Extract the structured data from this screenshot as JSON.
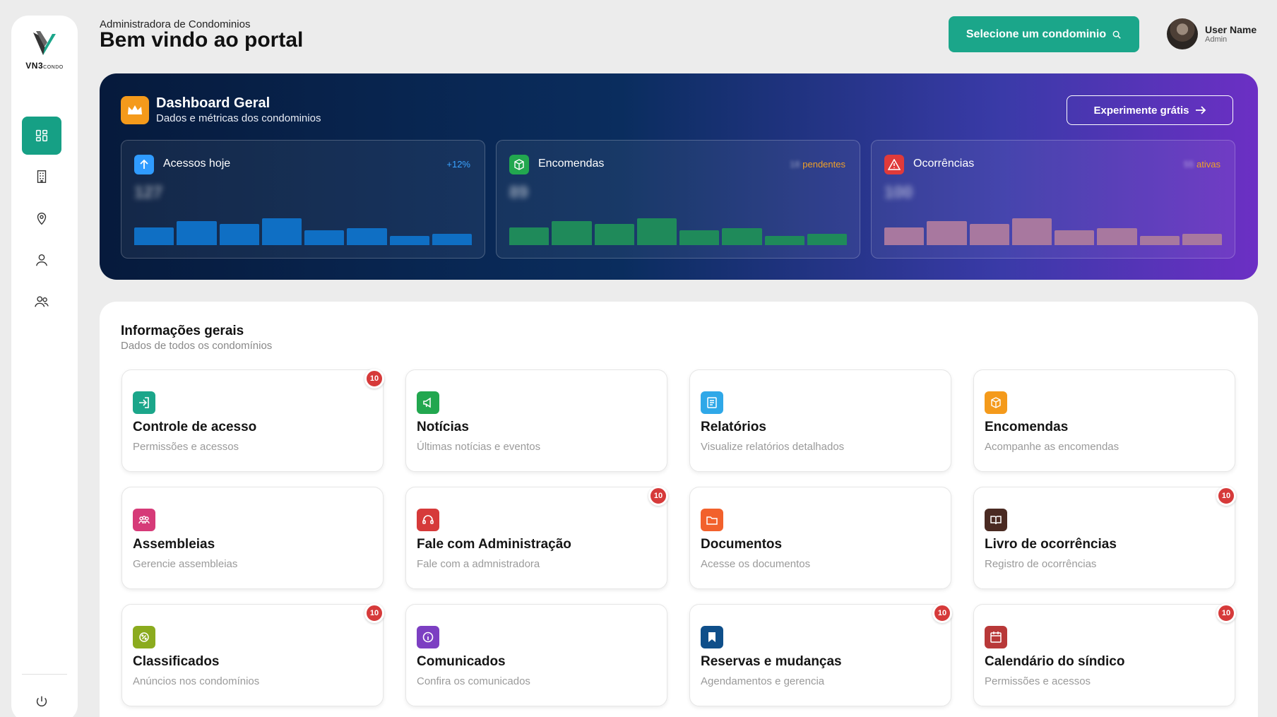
{
  "sidebar": {
    "logo_text": "VN3",
    "logo_small": "CONDO",
    "items": [
      {
        "name": "dashboard",
        "icon": "dashboard-icon",
        "active": true
      },
      {
        "name": "building",
        "icon": "building-icon",
        "active": false
      },
      {
        "name": "location",
        "icon": "location-pin-icon",
        "active": false
      },
      {
        "name": "user",
        "icon": "user-icon",
        "active": false
      },
      {
        "name": "users",
        "icon": "users-icon",
        "active": false
      }
    ],
    "logout_icon": "power-icon"
  },
  "header": {
    "subtitle": "Administradora de Condominios",
    "title": "Bem vindo ao portal",
    "select_button": "Selecione um condominio",
    "user_name": "User Name",
    "user_role": "Admin"
  },
  "dashboard": {
    "title": "Dashboard Geral",
    "subtitle": "Dados e métricas dos condominios",
    "trial_button": "Experimente grátis",
    "metrics": [
      {
        "title": "Acessos hoje",
        "badge_value": "",
        "badge_text": "+12%",
        "value": "127",
        "color": "#1589e0",
        "bar_color": "#0f6fc4",
        "bars": [
          0.55,
          0.75,
          0.65,
          0.82,
          0.45,
          0.52,
          0.28,
          0.35
        ]
      },
      {
        "title": "Encomendas",
        "badge_value": "18",
        "badge_text": "pendentes",
        "value": "89",
        "color": "#22a74f",
        "bar_color": "#1f8a5a",
        "bars": [
          0.55,
          0.75,
          0.65,
          0.82,
          0.45,
          0.52,
          0.28,
          0.35
        ]
      },
      {
        "title": "Ocorrências",
        "badge_value": "55",
        "badge_text": "ativas",
        "value": "100",
        "color": "#e03a3a",
        "bar_color": "#a8789f",
        "bars": [
          0.55,
          0.75,
          0.65,
          0.82,
          0.45,
          0.52,
          0.28,
          0.35
        ]
      }
    ],
    "badge_colors": [
      "#3aa3ff",
      "#f0a028",
      "#f0a028"
    ]
  },
  "info": {
    "title": "Informações gerais",
    "subtitle": "Dados de todos os condomínios",
    "cards": [
      {
        "title": "Controle de acesso",
        "subtitle": "Permissões e acessos",
        "badge": "10",
        "icon": "door-enter-icon",
        "color": "#1ba68a"
      },
      {
        "title": "Notícias",
        "subtitle": "Últimas notícias e eventos",
        "badge": "",
        "icon": "megaphone-icon",
        "color": "#22a74f"
      },
      {
        "title": "Relatórios",
        "subtitle": "Visualize relatórios detalhados",
        "badge": "",
        "icon": "report-icon",
        "color": "#2fa8e8"
      },
      {
        "title": "Encomendas",
        "subtitle": "Acompanhe as encomendas",
        "badge": "",
        "icon": "package-icon",
        "color": "#f49a1b"
      },
      {
        "title": "Assembleias",
        "subtitle": "Gerencie assembleias",
        "badge": "",
        "icon": "group-icon",
        "color": "#d63a78"
      },
      {
        "title": "Fale com Administração",
        "subtitle": "Fale com a admnistradora",
        "badge": "10",
        "icon": "headset-icon",
        "color": "#d63a3a"
      },
      {
        "title": "Documentos",
        "subtitle": "Acesse os documentos",
        "badge": "",
        "icon": "folder-icon",
        "color": "#f2612c"
      },
      {
        "title": "Livro de ocorrências",
        "subtitle": "Registro de ocorrências",
        "badge": "10",
        "icon": "book-icon",
        "color": "#4a2a22"
      },
      {
        "title": "Classificados",
        "subtitle": "Anúncios nos condomínios",
        "badge": "10",
        "icon": "percent-tag-icon",
        "color": "#8bab1e"
      },
      {
        "title": "Comunicados",
        "subtitle": "Confira os comunicados",
        "badge": "",
        "icon": "info-icon",
        "color": "#7c3fc2"
      },
      {
        "title": "Reservas e mudanças",
        "subtitle": "Agendamentos e gerencia",
        "badge": "10",
        "icon": "bookmark-icon",
        "color": "#0f4f8a"
      },
      {
        "title": "Calendário do síndico",
        "subtitle": "Permissões e acessos",
        "badge": "10",
        "icon": "calendar-icon",
        "color": "#b83838"
      }
    ]
  }
}
